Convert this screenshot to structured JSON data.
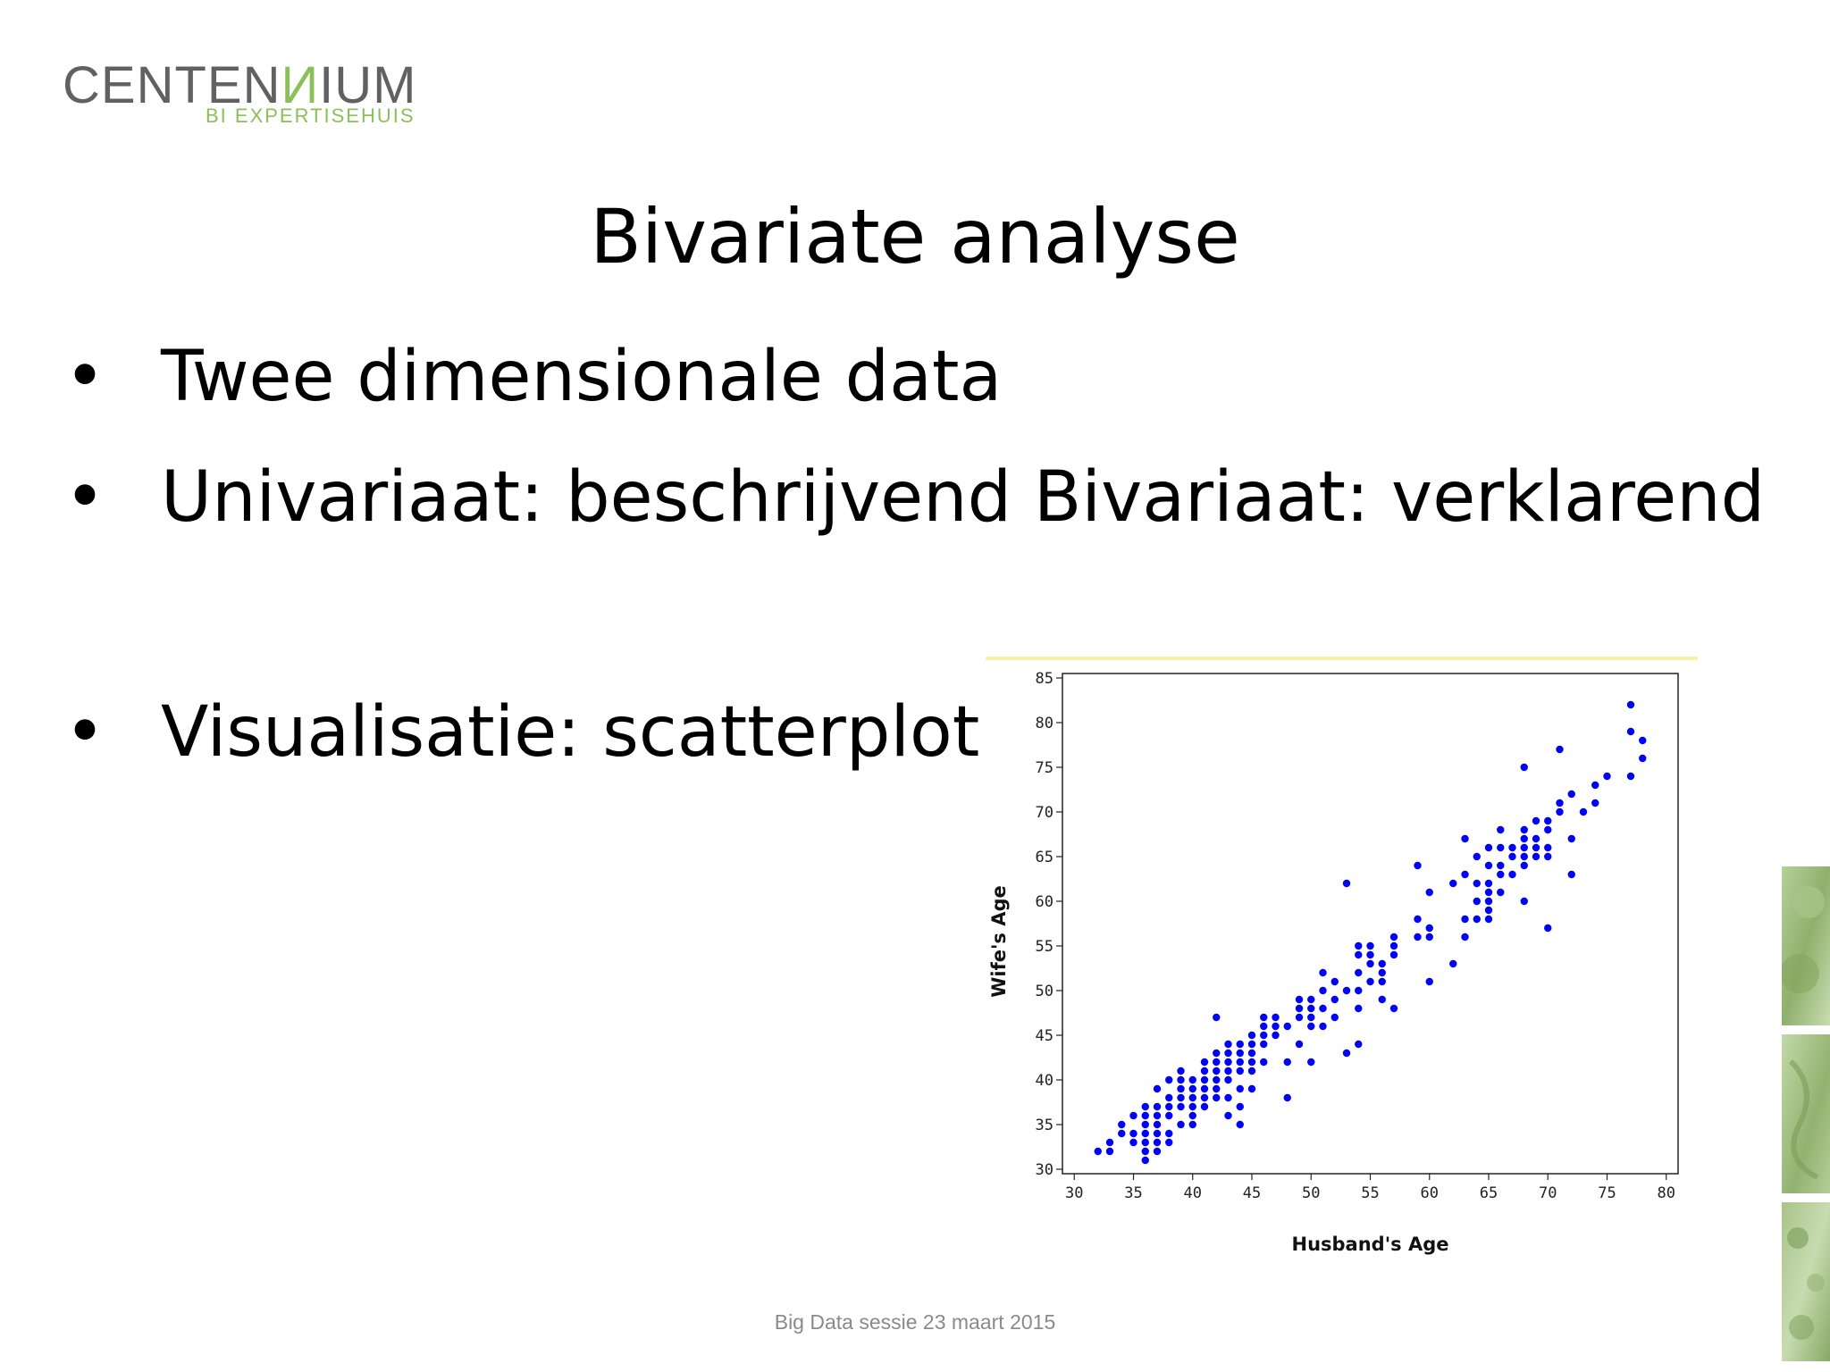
{
  "logo": {
    "text_main_a": "CENTEN",
    "text_main_accent": "И",
    "text_main_b": "IUM",
    "text_sub": "BI EXPERTISEHUIS"
  },
  "slide": {
    "title": "Bivariate analyse",
    "bullets": [
      "Twee dimensionale data",
      "Univariaat: beschrijvend Bivariaat: verklarend",
      "Visualisatie: scatterplot"
    ],
    "bullet_symbol": "•",
    "footer": "Big Data sessie 23 maart 2015"
  },
  "colors": {
    "points": "#0000ff",
    "logo_gray": "#616161",
    "logo_green": "#8bbf5a",
    "title": "#000000"
  },
  "chart_data": {
    "type": "scatter",
    "xlabel": "Husband's Age",
    "ylabel": "Wife's Age",
    "xlim": [
      29,
      81
    ],
    "ylim": [
      29.5,
      85.5
    ],
    "xticks": [
      30,
      35,
      40,
      45,
      50,
      55,
      60,
      65,
      70,
      75,
      80
    ],
    "yticks": [
      30,
      35,
      40,
      45,
      50,
      55,
      60,
      65,
      70,
      75,
      80,
      85
    ],
    "grid": false,
    "series": [
      {
        "points": [
          [
            32,
            32
          ],
          [
            33,
            32
          ],
          [
            33,
            33
          ],
          [
            34,
            34
          ],
          [
            34,
            35
          ],
          [
            35,
            33
          ],
          [
            35,
            34
          ],
          [
            35,
            36
          ],
          [
            36,
            31
          ],
          [
            36,
            32
          ],
          [
            36,
            33
          ],
          [
            36,
            34
          ],
          [
            36,
            35
          ],
          [
            36,
            36
          ],
          [
            36,
            37
          ],
          [
            37,
            32
          ],
          [
            37,
            33
          ],
          [
            37,
            34
          ],
          [
            37,
            35
          ],
          [
            37,
            36
          ],
          [
            37,
            37
          ],
          [
            37,
            39
          ],
          [
            38,
            33
          ],
          [
            38,
            34
          ],
          [
            38,
            36
          ],
          [
            38,
            37
          ],
          [
            38,
            38
          ],
          [
            38,
            40
          ],
          [
            39,
            35
          ],
          [
            39,
            37
          ],
          [
            39,
            38
          ],
          [
            39,
            39
          ],
          [
            39,
            40
          ],
          [
            39,
            41
          ],
          [
            40,
            35
          ],
          [
            40,
            36
          ],
          [
            40,
            37
          ],
          [
            40,
            38
          ],
          [
            40,
            39
          ],
          [
            40,
            40
          ],
          [
            41,
            37
          ],
          [
            41,
            38
          ],
          [
            41,
            39
          ],
          [
            41,
            40
          ],
          [
            41,
            41
          ],
          [
            41,
            42
          ],
          [
            42,
            38
          ],
          [
            42,
            39
          ],
          [
            42,
            40
          ],
          [
            42,
            41
          ],
          [
            42,
            42
          ],
          [
            42,
            43
          ],
          [
            42,
            47
          ],
          [
            43,
            36
          ],
          [
            43,
            38
          ],
          [
            43,
            40
          ],
          [
            43,
            41
          ],
          [
            43,
            42
          ],
          [
            43,
            43
          ],
          [
            43,
            44
          ],
          [
            44,
            35
          ],
          [
            44,
            37
          ],
          [
            44,
            39
          ],
          [
            44,
            41
          ],
          [
            44,
            42
          ],
          [
            44,
            43
          ],
          [
            44,
            44
          ],
          [
            45,
            39
          ],
          [
            45,
            41
          ],
          [
            45,
            42
          ],
          [
            45,
            43
          ],
          [
            45,
            44
          ],
          [
            45,
            45
          ],
          [
            46,
            42
          ],
          [
            46,
            44
          ],
          [
            46,
            45
          ],
          [
            46,
            46
          ],
          [
            46,
            47
          ],
          [
            47,
            45
          ],
          [
            47,
            46
          ],
          [
            47,
            47
          ],
          [
            48,
            38
          ],
          [
            48,
            42
          ],
          [
            48,
            46
          ],
          [
            49,
            44
          ],
          [
            49,
            47
          ],
          [
            49,
            48
          ],
          [
            49,
            49
          ],
          [
            50,
            42
          ],
          [
            50,
            46
          ],
          [
            50,
            47
          ],
          [
            50,
            48
          ],
          [
            50,
            49
          ],
          [
            51,
            46
          ],
          [
            51,
            48
          ],
          [
            51,
            50
          ],
          [
            51,
            52
          ],
          [
            52,
            47
          ],
          [
            52,
            49
          ],
          [
            52,
            51
          ],
          [
            53,
            43
          ],
          [
            53,
            50
          ],
          [
            53,
            62
          ],
          [
            54,
            44
          ],
          [
            54,
            48
          ],
          [
            54,
            50
          ],
          [
            54,
            52
          ],
          [
            54,
            54
          ],
          [
            54,
            55
          ],
          [
            55,
            51
          ],
          [
            55,
            53
          ],
          [
            55,
            54
          ],
          [
            55,
            55
          ],
          [
            56,
            49
          ],
          [
            56,
            51
          ],
          [
            56,
            52
          ],
          [
            56,
            53
          ],
          [
            57,
            48
          ],
          [
            57,
            54
          ],
          [
            57,
            55
          ],
          [
            57,
            56
          ],
          [
            59,
            56
          ],
          [
            59,
            58
          ],
          [
            59,
            64
          ],
          [
            60,
            51
          ],
          [
            60,
            56
          ],
          [
            60,
            57
          ],
          [
            60,
            61
          ],
          [
            62,
            53
          ],
          [
            62,
            62
          ],
          [
            63,
            56
          ],
          [
            63,
            58
          ],
          [
            63,
            63
          ],
          [
            63,
            67
          ],
          [
            64,
            58
          ],
          [
            64,
            60
          ],
          [
            64,
            62
          ],
          [
            64,
            65
          ],
          [
            65,
            58
          ],
          [
            65,
            59
          ],
          [
            65,
            60
          ],
          [
            65,
            61
          ],
          [
            65,
            62
          ],
          [
            65,
            64
          ],
          [
            65,
            66
          ],
          [
            66,
            61
          ],
          [
            66,
            63
          ],
          [
            66,
            64
          ],
          [
            66,
            66
          ],
          [
            66,
            68
          ],
          [
            67,
            63
          ],
          [
            67,
            65
          ],
          [
            67,
            66
          ],
          [
            68,
            60
          ],
          [
            68,
            64
          ],
          [
            68,
            65
          ],
          [
            68,
            66
          ],
          [
            68,
            67
          ],
          [
            68,
            68
          ],
          [
            68,
            75
          ],
          [
            69,
            65
          ],
          [
            69,
            66
          ],
          [
            69,
            67
          ],
          [
            69,
            69
          ],
          [
            70,
            57
          ],
          [
            70,
            65
          ],
          [
            70,
            66
          ],
          [
            70,
            68
          ],
          [
            70,
            69
          ],
          [
            71,
            70
          ],
          [
            71,
            71
          ],
          [
            71,
            77
          ],
          [
            72,
            63
          ],
          [
            72,
            67
          ],
          [
            72,
            72
          ],
          [
            73,
            70
          ],
          [
            74,
            71
          ],
          [
            74,
            73
          ],
          [
            75,
            74
          ],
          [
            77,
            74
          ],
          [
            77,
            79
          ],
          [
            77,
            82
          ],
          [
            78,
            76
          ],
          [
            78,
            78
          ]
        ]
      }
    ]
  }
}
